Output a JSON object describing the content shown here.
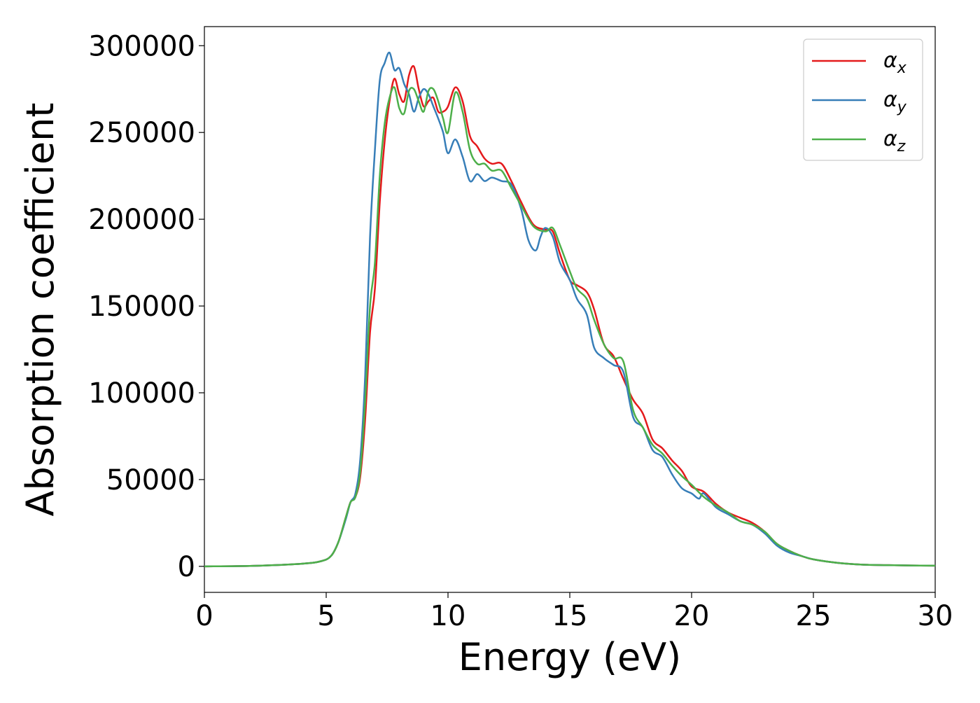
{
  "chart_data": {
    "type": "line",
    "title": "",
    "xlabel": "Energy (eV)",
    "ylabel": "Absorption coefficient",
    "xlim": [
      0,
      30
    ],
    "ylim": [
      -15000,
      311000
    ],
    "xticks": [
      0,
      5,
      10,
      15,
      20,
      25,
      30
    ],
    "xtick_labels": [
      "0",
      "5",
      "10",
      "15",
      "20",
      "25",
      "30"
    ],
    "yticks": [
      0,
      50000,
      100000,
      150000,
      200000,
      250000,
      300000
    ],
    "ytick_labels": [
      "0",
      "50000",
      "100000",
      "150000",
      "200000",
      "250000",
      "300000"
    ],
    "grid": false,
    "legend_position": "top-right",
    "series": [
      {
        "name": "αx",
        "symbol": "α",
        "subscript": "x",
        "color": "#e41a1c",
        "x": [
          0,
          2,
          4,
          4.8,
          5.2,
          5.5,
          5.8,
          6.0,
          6.2,
          6.4,
          6.6,
          6.8,
          7.0,
          7.2,
          7.4,
          7.6,
          7.8,
          8.0,
          8.2,
          8.4,
          8.6,
          8.8,
          9.0,
          9.2,
          9.4,
          9.6,
          9.8,
          10.0,
          10.3,
          10.6,
          10.9,
          11.2,
          11.5,
          11.8,
          12.2,
          12.6,
          13.0,
          13.5,
          14.0,
          14.3,
          14.6,
          15.0,
          15.3,
          15.7,
          16.0,
          16.4,
          16.8,
          17.2,
          17.6,
          18.0,
          18.4,
          18.8,
          19.2,
          19.6,
          20.0,
          20.5,
          21.0,
          21.5,
          22.0,
          22.5,
          23.0,
          23.5,
          24.0,
          24.5,
          25.0,
          26.0,
          27.0,
          28.0,
          29.0,
          30.0
        ],
        "y": [
          0,
          300,
          1500,
          3000,
          6000,
          14000,
          28000,
          37000,
          40000,
          52000,
          85000,
          135000,
          160000,
          210000,
          245000,
          268000,
          281000,
          272000,
          268000,
          283000,
          288000,
          275000,
          265000,
          268000,
          270000,
          262000,
          262000,
          265000,
          276000,
          268000,
          248000,
          242000,
          235000,
          232000,
          232000,
          222000,
          210000,
          197000,
          194000,
          193000,
          180000,
          165000,
          162000,
          158000,
          148000,
          128000,
          121000,
          108000,
          96000,
          88000,
          73000,
          68000,
          61000,
          55000,
          46000,
          43000,
          36000,
          31000,
          28000,
          25000,
          20000,
          13000,
          9000,
          6000,
          4000,
          2000,
          1000,
          700,
          500,
          400
        ]
      },
      {
        "name": "αy",
        "symbol": "α",
        "subscript": "y",
        "color": "#377eb8",
        "x": [
          0,
          2,
          4,
          4.8,
          5.2,
          5.5,
          5.8,
          6.0,
          6.2,
          6.4,
          6.6,
          6.8,
          7.0,
          7.2,
          7.4,
          7.6,
          7.8,
          8.0,
          8.2,
          8.4,
          8.6,
          8.8,
          9.0,
          9.2,
          9.4,
          9.6,
          9.8,
          10.0,
          10.3,
          10.6,
          10.9,
          11.2,
          11.5,
          11.8,
          12.2,
          12.6,
          13.0,
          13.3,
          13.6,
          13.8,
          14.0,
          14.3,
          14.6,
          15.0,
          15.3,
          15.7,
          16.0,
          16.4,
          16.8,
          17.2,
          17.6,
          18.0,
          18.4,
          18.8,
          19.2,
          19.6,
          20.0,
          20.3,
          20.5,
          21.0,
          21.5,
          22.0,
          22.5,
          23.0,
          23.5,
          24.0,
          24.5,
          25.0,
          26.0,
          27.0,
          28.0,
          29.0,
          30.0
        ],
        "y": [
          0,
          300,
          1500,
          3000,
          6000,
          14000,
          27000,
          37000,
          42000,
          62000,
          110000,
          190000,
          240000,
          280000,
          290000,
          296000,
          286000,
          287000,
          278000,
          272000,
          262000,
          270000,
          275000,
          272000,
          265000,
          258000,
          250000,
          238000,
          246000,
          236000,
          222000,
          226000,
          222000,
          224000,
          222000,
          220000,
          206000,
          188000,
          182000,
          190000,
          195000,
          190000,
          175000,
          165000,
          154000,
          145000,
          126000,
          120000,
          116000,
          112000,
          86000,
          80000,
          67000,
          63000,
          53000,
          45000,
          42000,
          39000,
          42000,
          34000,
          30000,
          26000,
          24000,
          19000,
          12000,
          8000,
          6000,
          4000,
          2000,
          1000,
          700,
          500,
          400
        ]
      },
      {
        "name": "αz",
        "symbol": "α",
        "subscript": "z",
        "color": "#4daf4a",
        "x": [
          0,
          2,
          4,
          4.8,
          5.2,
          5.5,
          5.8,
          6.0,
          6.2,
          6.4,
          6.6,
          6.8,
          7.0,
          7.2,
          7.4,
          7.6,
          7.8,
          8.0,
          8.2,
          8.4,
          8.6,
          8.8,
          9.0,
          9.2,
          9.4,
          9.6,
          9.8,
          10.0,
          10.3,
          10.6,
          10.9,
          11.2,
          11.5,
          11.8,
          12.2,
          12.6,
          13.0,
          13.5,
          14.0,
          14.3,
          14.6,
          15.0,
          15.3,
          15.7,
          16.0,
          16.4,
          16.8,
          17.2,
          17.6,
          18.0,
          18.4,
          18.8,
          19.2,
          19.6,
          20.0,
          20.5,
          21.0,
          21.5,
          22.0,
          22.5,
          23.0,
          23.5,
          24.0,
          24.5,
          25.0,
          26.0,
          27.0,
          28.0,
          29.0,
          30.0
        ],
        "y": [
          0,
          300,
          1500,
          3000,
          6000,
          14000,
          28000,
          37000,
          40000,
          55000,
          95000,
          150000,
          175000,
          225000,
          255000,
          270000,
          276000,
          264000,
          261000,
          274000,
          275000,
          268000,
          262000,
          274000,
          275000,
          268000,
          258000,
          250000,
          273000,
          262000,
          240000,
          232000,
          232000,
          228000,
          228000,
          218000,
          208000,
          196000,
          193000,
          195000,
          185000,
          170000,
          160000,
          154000,
          142000,
          128000,
          120000,
          118000,
          90000,
          80000,
          70000,
          65000,
          58000,
          52000,
          47000,
          40000,
          35000,
          31000,
          26000,
          24000,
          20000,
          13000,
          9000,
          6000,
          4000,
          2000,
          1000,
          700,
          500,
          400
        ]
      }
    ]
  }
}
